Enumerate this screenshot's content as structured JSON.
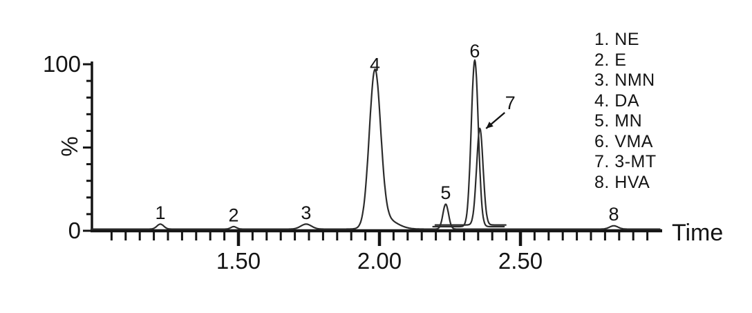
{
  "figure": {
    "background": "#ffffff",
    "axis_color": "#141414",
    "trace_color": "#2b2b2b",
    "text_color": "#141414"
  },
  "chart_data": {
    "type": "line",
    "title": "",
    "xlabel": "Time",
    "ylabel": "%",
    "xlim": [
      0.97,
      3.0
    ],
    "ylim": [
      0,
      100
    ],
    "grid": false,
    "x_major_ticks": [
      1.5,
      2.0,
      2.5
    ],
    "x_tick_labels": [
      "1.50",
      "2.00",
      "2.50"
    ],
    "x_minor_tick_step": 0.05,
    "x_minor_tick_range": [
      1.05,
      2.95
    ],
    "y_tick_step": 10,
    "y_labeled_ticks": [
      {
        "value": 100,
        "label": "100"
      },
      {
        "value": 0,
        "label": "0"
      }
    ],
    "peaks": [
      {
        "num": "1",
        "analyte": "NE",
        "time": 1.223,
        "height_pct": 3,
        "sigma": 0.012
      },
      {
        "num": "2",
        "analyte": "E",
        "time": 1.483,
        "height_pct": 1.5,
        "sigma": 0.01
      },
      {
        "num": "3",
        "analyte": "NMN",
        "time": 1.74,
        "height_pct": 3,
        "sigma": 0.019
      },
      {
        "num": "4",
        "analyte": "DA",
        "time": 1.984,
        "height_pct": 92,
        "sigma": 0.02
      },
      {
        "num": "5",
        "analyte": "MN",
        "time": 2.235,
        "height_pct": 15,
        "sigma": 0.01
      },
      {
        "num": "6",
        "analyte": "VMA",
        "time": 2.338,
        "height_pct": 100,
        "sigma": 0.0125
      },
      {
        "num": "7",
        "analyte": "3-MT",
        "time": 2.356,
        "height_pct": 58,
        "sigma": 0.0115
      },
      {
        "num": "8",
        "analyte": "HVA",
        "time": 2.831,
        "height_pct": 2,
        "sigma": 0.015
      }
    ],
    "annotated_peak": {
      "num": "7",
      "has_arrow": true
    },
    "traces": [
      {
        "name": "main",
        "range": [
          0.978,
          2.995
        ],
        "baseline_pct": 1.0,
        "peak_nums": [
          "1",
          "2",
          "3",
          "4",
          "5",
          "8"
        ],
        "extra_components": [
          {
            "time": 2.02,
            "height_pct": 6,
            "sigma": 0.04
          }
        ]
      },
      {
        "name": "vma-trace",
        "range": [
          2.19,
          2.442
        ],
        "baseline_pct": 2.5,
        "peak_nums": [
          "6"
        ],
        "extra_components": []
      },
      {
        "name": "mt-trace",
        "range": [
          2.198,
          2.449
        ],
        "baseline_pct": 3.5,
        "peak_nums": [
          "7"
        ],
        "extra_components": []
      }
    ],
    "legend_position": "top-right"
  },
  "legend": {
    "items": [
      "1. NE",
      "2. E",
      "3. NMN",
      "4. DA",
      "5. MN",
      "6. VMA",
      "7. 3-MT",
      "8. HVA"
    ]
  }
}
